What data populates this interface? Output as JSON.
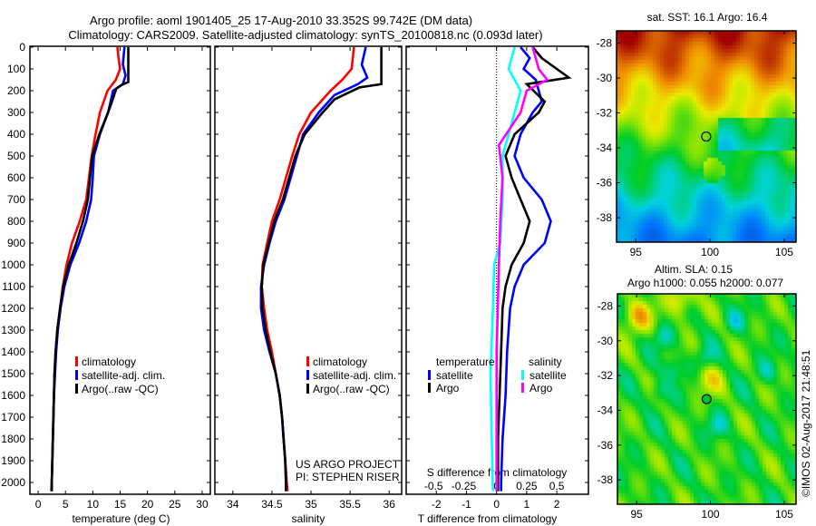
{
  "title_line1": "Argo profile: aoml 1901405_25 17-Aug-2010 33.352S 99.742E (DM data)",
  "title_line2": "Climatology: CARS2009. Satellite-adjusted climatology: synTS_20100818.nc (0.093d later)",
  "credit": "©IMOS 02-Aug-2017 21:48:51",
  "project": [
    "US ARGO PROJECT",
    "PI: STEPHEN RISER"
  ],
  "colors": {
    "climatology": "#ff0000",
    "satellite": "#0000ff",
    "argo": "#000000",
    "sal_satellite": "#00ffff",
    "sal_argo": "#ff00ff"
  },
  "chart_data": [
    {
      "type": "line",
      "name": "temperature",
      "xlabel": "temperature (deg C)",
      "ylabel": "",
      "xlim": [
        -1.5,
        31.5
      ],
      "ylim": [
        2055,
        0
      ],
      "xticks": [
        0,
        5,
        10,
        15,
        20,
        25,
        30
      ],
      "yticks": [
        0,
        100,
        200,
        300,
        400,
        500,
        600,
        700,
        800,
        900,
        1000,
        1100,
        1200,
        1300,
        1400,
        1500,
        1600,
        1700,
        1800,
        1900,
        2000
      ],
      "legend": [
        "climatology",
        "satellite-adj. clim.",
        "Argo(..raw -QC)"
      ],
      "series": [
        {
          "name": "climatology",
          "color": "#ff0000",
          "points": [
            [
              14.5,
              0
            ],
            [
              14.7,
              50
            ],
            [
              15.0,
              100
            ],
            [
              14.2,
              150
            ],
            [
              12.7,
              200
            ],
            [
              11.3,
              300
            ],
            [
              10.5,
              400
            ],
            [
              9.8,
              500
            ],
            [
              9.3,
              600
            ],
            [
              8.8,
              700
            ],
            [
              7.6,
              800
            ],
            [
              6.2,
              900
            ],
            [
              5.2,
              1000
            ],
            [
              4.5,
              1100
            ],
            [
              4.0,
              1200
            ],
            [
              3.5,
              1300
            ],
            [
              3.2,
              1400
            ],
            [
              3.0,
              1500
            ],
            [
              2.9,
              1600
            ],
            [
              2.8,
              1700
            ],
            [
              2.7,
              1800
            ],
            [
              2.6,
              1900
            ],
            [
              2.5,
              2000
            ],
            [
              2.4,
              2040
            ]
          ]
        },
        {
          "name": "satellite-adj. clim.",
          "color": "#0000ff",
          "points": [
            [
              15.8,
              0
            ],
            [
              15.5,
              80
            ],
            [
              16.0,
              130
            ],
            [
              15.5,
              170
            ],
            [
              13.7,
              200
            ],
            [
              12.8,
              300
            ],
            [
              11.3,
              400
            ],
            [
              10.2,
              500
            ],
            [
              10.0,
              600
            ],
            [
              9.7,
              700
            ],
            [
              8.8,
              800
            ],
            [
              7.5,
              900
            ],
            [
              5.9,
              1000
            ],
            [
              4.8,
              1100
            ],
            [
              4.1,
              1200
            ],
            [
              3.6,
              1300
            ],
            [
              3.3,
              1400
            ],
            [
              3.1,
              1500
            ],
            [
              2.9,
              1600
            ],
            [
              2.8,
              1700
            ],
            [
              2.7,
              1800
            ],
            [
              2.6,
              1900
            ],
            [
              2.5,
              2000
            ],
            [
              2.5,
              2040
            ]
          ]
        },
        {
          "name": "Argo(..raw -QC)",
          "color": "#000000",
          "points": [
            [
              16.5,
              0
            ],
            [
              16.5,
              160
            ],
            [
              15.2,
              175
            ],
            [
              14.3,
              190
            ],
            [
              13.5,
              250
            ],
            [
              12.8,
              300
            ],
            [
              11.2,
              400
            ],
            [
              9.9,
              500
            ],
            [
              9.5,
              600
            ],
            [
              9.1,
              700
            ],
            [
              8.2,
              800
            ],
            [
              7.0,
              900
            ],
            [
              5.6,
              1000
            ],
            [
              4.6,
              1100
            ],
            [
              4.0,
              1200
            ],
            [
              3.5,
              1300
            ],
            [
              3.2,
              1400
            ],
            [
              3.0,
              1500
            ],
            [
              2.9,
              1600
            ],
            [
              2.8,
              1700
            ],
            [
              2.7,
              1800
            ],
            [
              2.6,
              1900
            ],
            [
              2.5,
              2000
            ],
            [
              2.5,
              2040
            ]
          ]
        }
      ]
    },
    {
      "type": "line",
      "name": "salinity",
      "xlabel": "salinity",
      "xlim": [
        33.77,
        36.16
      ],
      "ylim": [
        2055,
        0
      ],
      "xticks": [
        34,
        34.5,
        35,
        35.5,
        36
      ],
      "legend": [
        "climatology",
        "satellite-adj. clim.",
        "Argo(..raw -QC)"
      ],
      "series": [
        {
          "name": "climatology",
          "color": "#ff0000",
          "points": [
            [
              35.55,
              0
            ],
            [
              35.52,
              100
            ],
            [
              35.4,
              150
            ],
            [
              35.25,
              200
            ],
            [
              35.0,
              300
            ],
            [
              34.85,
              400
            ],
            [
              34.76,
              500
            ],
            [
              34.68,
              600
            ],
            [
              34.6,
              700
            ],
            [
              34.5,
              800
            ],
            [
              34.44,
              900
            ],
            [
              34.38,
              1000
            ],
            [
              34.37,
              1100
            ],
            [
              34.4,
              1200
            ],
            [
              34.44,
              1300
            ],
            [
              34.5,
              1400
            ],
            [
              34.55,
              1500
            ],
            [
              34.6,
              1600
            ],
            [
              34.63,
              1700
            ],
            [
              34.65,
              1800
            ],
            [
              34.67,
              1900
            ],
            [
              34.69,
              2000
            ],
            [
              34.7,
              2040
            ]
          ]
        },
        {
          "name": "satellite-adj. clim.",
          "color": "#0000ff",
          "points": [
            [
              35.7,
              0
            ],
            [
              35.65,
              80
            ],
            [
              35.72,
              140
            ],
            [
              35.6,
              170
            ],
            [
              35.3,
              220
            ],
            [
              35.1,
              300
            ],
            [
              34.9,
              400
            ],
            [
              34.82,
              500
            ],
            [
              34.74,
              600
            ],
            [
              34.66,
              700
            ],
            [
              34.55,
              800
            ],
            [
              34.47,
              900
            ],
            [
              34.4,
              1000
            ],
            [
              34.36,
              1100
            ],
            [
              34.36,
              1200
            ],
            [
              34.4,
              1300
            ],
            [
              34.47,
              1400
            ],
            [
              34.55,
              1500
            ],
            [
              34.6,
              1600
            ],
            [
              34.63,
              1700
            ],
            [
              34.65,
              1800
            ],
            [
              34.67,
              1900
            ],
            [
              34.68,
              2000
            ],
            [
              34.68,
              2040
            ]
          ]
        },
        {
          "name": "Argo(..raw -QC)",
          "color": "#000000",
          "points": [
            [
              35.9,
              0
            ],
            [
              35.9,
              170
            ],
            [
              35.62,
              185
            ],
            [
              35.3,
              240
            ],
            [
              35.15,
              300
            ],
            [
              34.92,
              400
            ],
            [
              34.8,
              500
            ],
            [
              34.72,
              600
            ],
            [
              34.64,
              700
            ],
            [
              34.53,
              800
            ],
            [
              34.46,
              900
            ],
            [
              34.39,
              1000
            ],
            [
              34.37,
              1100
            ],
            [
              34.38,
              1200
            ],
            [
              34.42,
              1300
            ],
            [
              34.48,
              1400
            ],
            [
              34.55,
              1500
            ],
            [
              34.6,
              1600
            ],
            [
              34.63,
              1700
            ],
            [
              34.65,
              1800
            ],
            [
              34.67,
              1900
            ],
            [
              34.68,
              2000
            ],
            [
              34.68,
              2040
            ]
          ]
        }
      ]
    },
    {
      "type": "line",
      "name": "differences",
      "xlabel": "T difference from climatology",
      "x2label": "S difference from climatology",
      "xlim": [
        -3.0,
        3.05
      ],
      "ylim": [
        2055,
        0
      ],
      "xticks": [
        -2,
        -1,
        0,
        1,
        2
      ],
      "x2ticks": [
        "-0.5",
        "-0.25",
        "0",
        "0.25",
        "0.5"
      ],
      "legend_temperature": {
        "title": "temperature",
        "items": [
          "satellite",
          "Argo"
        ]
      },
      "legend_salinity": {
        "title": "salinity",
        "items": [
          "satellite",
          "Argo"
        ]
      },
      "series": [
        {
          "name": "T satellite",
          "color": "#0000ff",
          "scale": 1,
          "points": [
            [
              0.8,
              0
            ],
            [
              1.1,
              50
            ],
            [
              0.9,
              100
            ],
            [
              1.3,
              150
            ],
            [
              1.5,
              250
            ],
            [
              1.2,
              300
            ],
            [
              0.8,
              400
            ],
            [
              0.6,
              500
            ],
            [
              0.9,
              600
            ],
            [
              1.5,
              700
            ],
            [
              1.8,
              800
            ],
            [
              1.6,
              900
            ],
            [
              0.9,
              1000
            ],
            [
              0.6,
              1100
            ],
            [
              0.45,
              1200
            ],
            [
              0.35,
              1400
            ],
            [
              0.3,
              1600
            ],
            [
              0.2,
              1800
            ],
            [
              0.15,
              2000
            ],
            [
              0.15,
              2040
            ]
          ]
        },
        {
          "name": "T Argo",
          "color": "#000000",
          "scale": 1,
          "points": [
            [
              1.2,
              0
            ],
            [
              1.5,
              50
            ],
            [
              2.0,
              100
            ],
            [
              2.4,
              140
            ],
            [
              1.0,
              170
            ],
            [
              1.6,
              250
            ],
            [
              1.4,
              300
            ],
            [
              0.6,
              400
            ],
            [
              0.3,
              500
            ],
            [
              0.5,
              600
            ],
            [
              0.8,
              700
            ],
            [
              1.1,
              800
            ],
            [
              0.9,
              900
            ],
            [
              0.5,
              1000
            ],
            [
              0.3,
              1100
            ],
            [
              0.2,
              1200
            ],
            [
              0.15,
              1400
            ],
            [
              0.1,
              1600
            ],
            [
              0.05,
              1800
            ],
            [
              0.05,
              2000
            ],
            [
              0.05,
              2040
            ]
          ]
        },
        {
          "name": "S satellite",
          "color": "#00ffff",
          "scale": 4,
          "points": [
            [
              0.15,
              0
            ],
            [
              0.1,
              100
            ],
            [
              0.2,
              200
            ],
            [
              0.15,
              300
            ],
            [
              0.1,
              400
            ],
            [
              0.05,
              500
            ],
            [
              0.05,
              700
            ],
            [
              0.03,
              900
            ],
            [
              -0.02,
              1000
            ],
            [
              -0.03,
              1200
            ],
            [
              -0.05,
              1500
            ],
            [
              -0.04,
              1800
            ],
            [
              -0.03,
              2040
            ]
          ]
        },
        {
          "name": "S Argo",
          "color": "#ff00ff",
          "scale": 4,
          "points": [
            [
              0.3,
              0
            ],
            [
              0.35,
              100
            ],
            [
              0.42,
              150
            ],
            [
              0.25,
              200
            ],
            [
              0.2,
              300
            ],
            [
              0.02,
              450
            ],
            [
              0.05,
              600
            ],
            [
              0.03,
              800
            ],
            [
              0.02,
              1000
            ],
            [
              0.0,
              1400
            ],
            [
              0.0,
              2040
            ]
          ]
        }
      ]
    },
    {
      "type": "heatmap",
      "name": "sst-map",
      "title": "sat. SST: 16.1 Argo: 16.4",
      "xlim": [
        93.7,
        105.8
      ],
      "ylim": [
        -39.4,
        -27.3
      ],
      "xticks": [
        95,
        100,
        105
      ],
      "yticks": [
        -28,
        -30,
        -32,
        -34,
        -36,
        -38
      ],
      "marker": {
        "lon": 99.742,
        "lat": -33.352
      }
    },
    {
      "type": "heatmap",
      "name": "sla-map",
      "title": [
        "Altim. SLA: 0.15",
        "Argo h1000: 0.055 h2000: 0.077"
      ],
      "xlim": [
        93.7,
        105.8
      ],
      "ylim": [
        -39.4,
        -27.3
      ],
      "xticks": [
        95,
        100,
        105
      ],
      "yticks": [
        -28,
        -30,
        -32,
        -34,
        -36,
        -38
      ],
      "marker": {
        "lon": 99.742,
        "lat": -33.352
      }
    }
  ]
}
